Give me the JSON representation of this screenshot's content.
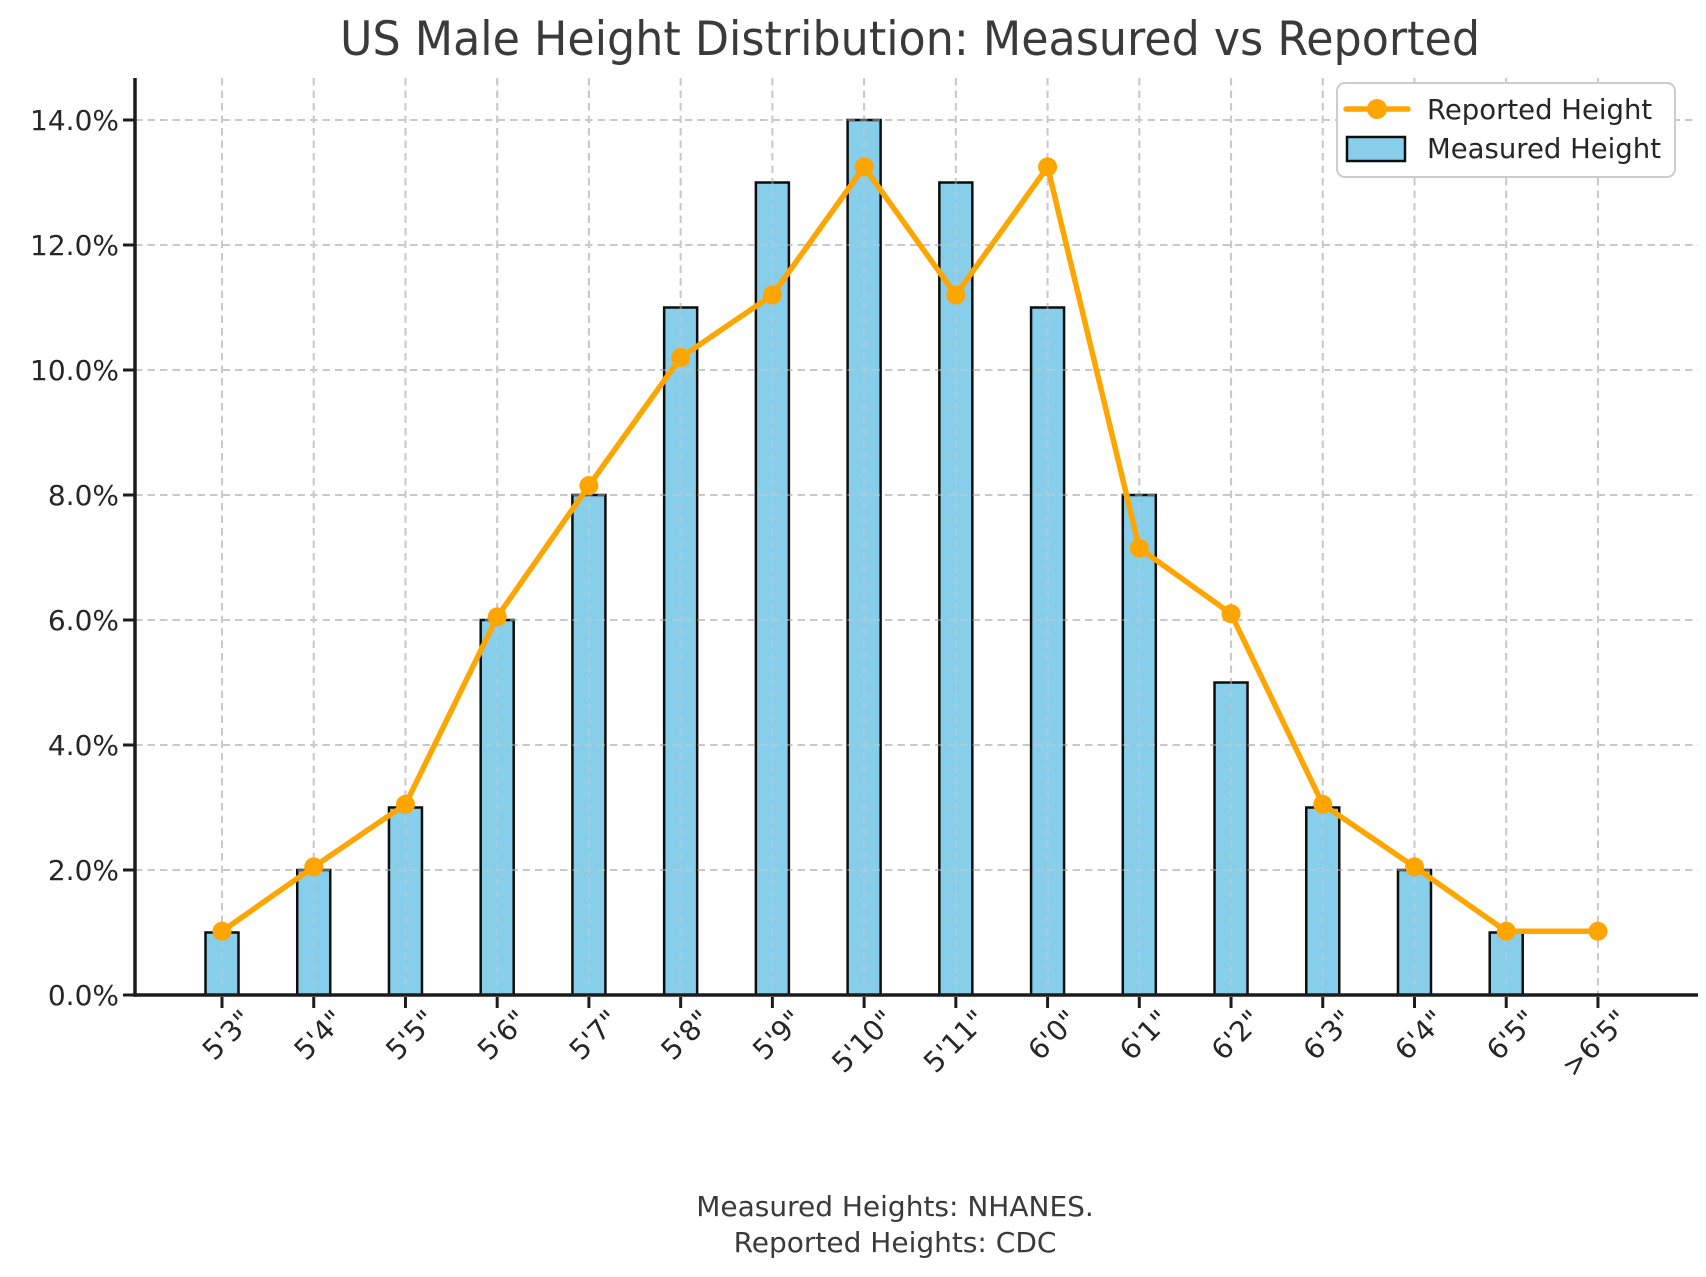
{
  "chart_data": {
    "type": "bar",
    "title": "US Male Height Distribution: Measured vs Reported",
    "categories": [
      "5'3\"",
      "5'4\"",
      "5'5\"",
      "5'6\"",
      "5'7\"",
      "5'8\"",
      "5'9\"",
      "5'10\"",
      "5'11\"",
      "6'0\"",
      "6'1\"",
      "6'2\"",
      "6'3\"",
      "6'4\"",
      "6'5\"",
      ">6'5\""
    ],
    "series": [
      {
        "name": "Measured Height",
        "kind": "bar",
        "color": "#87CEEB",
        "edge_color": "#0d0d0d",
        "values": [
          1,
          2,
          3,
          6,
          8,
          11,
          13,
          14,
          13,
          11,
          8,
          5,
          3,
          2,
          1,
          0
        ]
      },
      {
        "name": "Reported Height",
        "kind": "line",
        "color": "#FFA500",
        "marker": "circle",
        "values": [
          1.02,
          2.05,
          3.05,
          6.05,
          8.15,
          10.2,
          11.2,
          13.25,
          11.2,
          13.25,
          7.15,
          6.1,
          3.05,
          2.05,
          1.02,
          1.02
        ]
      }
    ],
    "xlabel": "",
    "ylabel": "",
    "ylim": [
      0,
      14.6
    ],
    "yticks": {
      "values": [
        0,
        2,
        4,
        6,
        8,
        10,
        12,
        14
      ],
      "labels": [
        "0.0%",
        "2.0%",
        "4.0%",
        "6.0%",
        "8.0%",
        "10.0%",
        "12.0%",
        "14.0%"
      ]
    },
    "grid": true,
    "grid_color": "#c9c9c9",
    "legend": {
      "position": "top-right",
      "entries": [
        "Reported Height",
        "Measured Height"
      ]
    },
    "caption_lines": [
      "Measured Heights: NHANES.",
      "Reported Heights: CDC"
    ],
    "colors": {
      "axis": "#1c1c1c",
      "tick_text": "#262626",
      "title_text": "#3a3a3a",
      "caption_text": "#3a3a3a",
      "legend_border": "#cccccc",
      "legend_bg": "#ffffff"
    }
  }
}
